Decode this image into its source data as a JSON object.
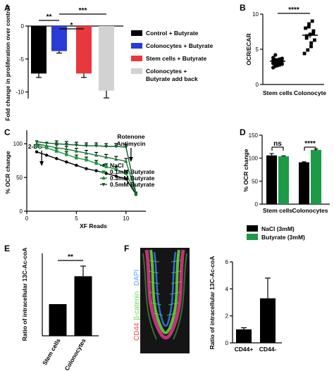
{
  "panel_letters": [
    "A",
    "B",
    "C",
    "D",
    "E",
    "F"
  ],
  "chart_data": [
    {
      "panel": "A",
      "type": "bar",
      "ylabel": "Fold change in proliferation over control",
      "ylim": [
        -11,
        0
      ],
      "yticks": [
        "0",
        "-5",
        "-10"
      ],
      "categories": [
        "Control + Butyrate",
        "Colonocytes + Butyrate",
        "Stem cells + Butyrate",
        "Colonocytes + Butyrate add back"
      ],
      "values": [
        -7.2,
        -3.8,
        -7.2,
        -9.8
      ],
      "errors": [
        0.6,
        0.3,
        0.6,
        1.1
      ],
      "colors": [
        "#000000",
        "#2a3bd6",
        "#e8383d",
        "#d2d2d2"
      ],
      "legend": [
        "Control + Butyrate",
        "Colonocytes + Butyrate",
        "Stem cells + Butyrate",
        "Colonocytes +\nButyrate add back"
      ],
      "significance": [
        "**",
        "*",
        "***"
      ]
    },
    {
      "panel": "B",
      "type": "scatter",
      "ylabel": "OCR/ECAR",
      "ylim": [
        0,
        10
      ],
      "yticks": [
        "0",
        "5",
        "10"
      ],
      "categories": [
        "Stem cells",
        "Colonocyte"
      ],
      "means": [
        3.3,
        7.0
      ],
      "sems": [
        0.15,
        0.4
      ],
      "points": [
        [
          2.4,
          2.6,
          2.7,
          2.8,
          2.9,
          3.0,
          3.0,
          3.1,
          3.2,
          3.3,
          3.4,
          3.5,
          3.5,
          3.6,
          3.7,
          3.8,
          4.2
        ],
        [
          4.4,
          4.9,
          5.4,
          5.9,
          6.3,
          6.6,
          6.9,
          7.1,
          7.3,
          7.6,
          8.0,
          8.2,
          8.6,
          9.0
        ]
      ],
      "significance": "****"
    },
    {
      "panel": "C",
      "type": "line",
      "xlabel": "XF Reads",
      "ylabel": "% OCR change",
      "xlim": [
        0,
        12
      ],
      "ylim": [
        0,
        120
      ],
      "xticks": [
        "0",
        "5",
        "10"
      ],
      "yticks": [
        "0",
        "50",
        "100"
      ],
      "annotations": [
        "2-DG",
        "Rotenone",
        "Antimycin"
      ],
      "x": [
        1,
        2,
        3,
        4,
        5,
        6,
        7,
        8,
        9,
        10,
        11
      ],
      "series": [
        {
          "name": "NaCl",
          "color": "#000000",
          "marker": "circle",
          "values": [
            88,
            83,
            78,
            73,
            68,
            63,
            60,
            56,
            52,
            48,
            25
          ]
        },
        {
          "name": "0.1mM Butyrate",
          "color": "#1d9a3e",
          "marker": "square",
          "values": [
            97,
            94,
            89,
            84,
            79,
            76,
            71,
            66,
            62,
            56,
            26
          ]
        },
        {
          "name": "0.3mM Butyrate",
          "color": "#1f7a3a",
          "marker": "triangle",
          "values": [
            100,
            97,
            94,
            92,
            89,
            86,
            83,
            80,
            77,
            74,
            26
          ]
        },
        {
          "name": "0.5mM Butyrate",
          "color": "#0f5f2c",
          "marker": "triangle-down",
          "values": [
            103,
            101,
            100,
            99,
            98,
            97,
            97,
            96,
            96,
            95,
            27
          ]
        }
      ]
    },
    {
      "panel": "D",
      "type": "bar",
      "ylabel": "% OCR change",
      "ylim": [
        0,
        150
      ],
      "yticks": [
        "0",
        "50",
        "100",
        "150"
      ],
      "categories": [
        "Stem cells",
        "Colonocytes"
      ],
      "series": [
        {
          "name": "NaCl (3mM)",
          "color": "#000000",
          "values": [
            106,
            91
          ],
          "errors": [
            4,
            1
          ]
        },
        {
          "name": "Butyrate (3mM)",
          "color": "#1d9a48",
          "values": [
            104,
            118
          ],
          "errors": [
            1,
            2
          ]
        }
      ],
      "significance": [
        "ns",
        "****"
      ]
    },
    {
      "panel": "E",
      "type": "bar",
      "ylabel": "Ratio of intracellular 13C-Ac-coA",
      "ylim": [
        0,
        2.6
      ],
      "yticks": [],
      "categories": [
        "Stem cells",
        "Colonocytes"
      ],
      "values": [
        1.0,
        1.88
      ],
      "errors": [
        0,
        0.32
      ],
      "colors": [
        "#000000",
        "#000000"
      ],
      "significance": "**"
    },
    {
      "panel": "F",
      "type": "bar",
      "ylabel": "Ratio of intracellular 13C-Ac-coA",
      "ylim": [
        0,
        6
      ],
      "yticks": [
        "0",
        "2",
        "4",
        "6"
      ],
      "categories": [
        "CD44+",
        "CD44-"
      ],
      "values": [
        1.0,
        3.3
      ],
      "errors": [
        0.12,
        1.5
      ],
      "colors": [
        "#000000",
        "#000000"
      ],
      "image_labels": [
        "CD44",
        "β-catenin",
        "DAPI"
      ],
      "image_label_colors": [
        "#ff4040",
        "#66dd44",
        "#5aa0ff"
      ]
    }
  ]
}
